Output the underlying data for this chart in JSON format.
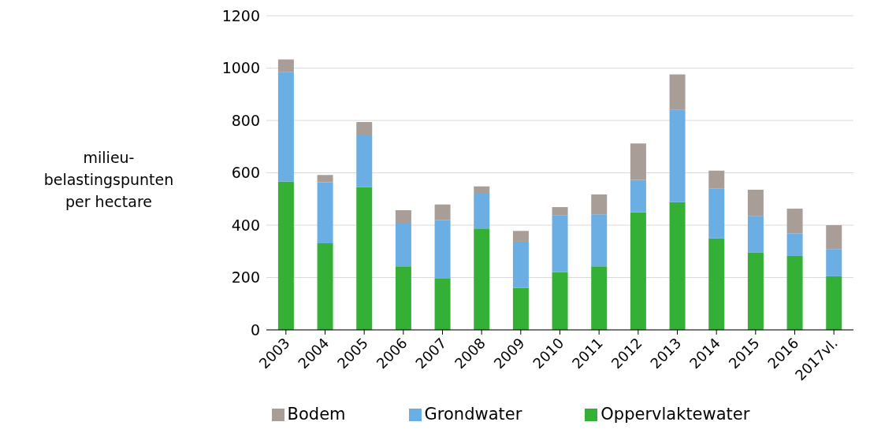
{
  "chart_data": {
    "type": "bar",
    "stacked": true,
    "ylabel": "milieu-belastingspunten per hectare",
    "categories": [
      "2003",
      "2004",
      "2005",
      "2006",
      "2007",
      "2008",
      "2009",
      "2010",
      "2011",
      "2012",
      "2013",
      "2014",
      "2015",
      "2016",
      "2017vl."
    ],
    "series": [
      {
        "name": "Oppervlaktewater",
        "color": "#33b035",
        "values": [
          567,
          331,
          545,
          243,
          198,
          387,
          161,
          220,
          243,
          450,
          488,
          350,
          296,
          283,
          205
        ]
      },
      {
        "name": "Grondwater",
        "color": "#6aaee3",
        "values": [
          419,
          233,
          198,
          163,
          221,
          133,
          176,
          218,
          198,
          123,
          353,
          189,
          139,
          86,
          104
        ]
      },
      {
        "name": "Bodem",
        "color": "#a89e97",
        "values": [
          47,
          28,
          51,
          51,
          60,
          28,
          41,
          31,
          76,
          139,
          135,
          69,
          100,
          94,
          91
        ]
      }
    ],
    "ylim": [
      0,
      1200
    ],
    "yticks": [
      0,
      200,
      400,
      600,
      800,
      1000,
      1200
    ],
    "grid": "y",
    "legend": "bottom"
  }
}
